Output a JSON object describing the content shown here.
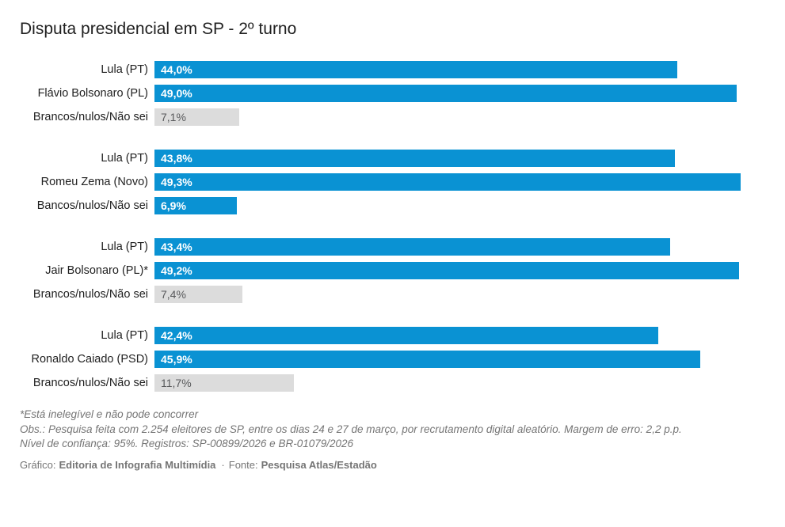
{
  "title": "Disputa presidencial em SP - 2º turno",
  "colors": {
    "bar_blue": "#0a92d3",
    "bar_gray": "#dcdcdc",
    "value_on_blue": "#ffffff",
    "value_on_gray": "#58595b",
    "label_text": "#212121",
    "note_text": "#757575"
  },
  "chart_data": {
    "type": "bar",
    "orientation": "horizontal",
    "value_unit": "%",
    "xlim": [
      0,
      53
    ],
    "grid": false,
    "legend": false,
    "groups": [
      {
        "rows": [
          {
            "label": "Lula (PT)",
            "value": 44.0,
            "value_label": "44,0%",
            "style": "blue"
          },
          {
            "label": "Flávio Bolsonaro (PL)",
            "value": 49.0,
            "value_label": "49,0%",
            "style": "blue"
          },
          {
            "label": "Brancos/nulos/Não sei",
            "value": 7.1,
            "value_label": "7,1%",
            "style": "gray"
          }
        ]
      },
      {
        "rows": [
          {
            "label": "Lula (PT)",
            "value": 43.8,
            "value_label": "43,8%",
            "style": "blue"
          },
          {
            "label": "Romeu Zema (Novo)",
            "value": 49.3,
            "value_label": "49,3%",
            "style": "blue"
          },
          {
            "label": "Bancos/nulos/Não sei",
            "value": 6.9,
            "value_label": "6,9%",
            "style": "blue"
          }
        ]
      },
      {
        "rows": [
          {
            "label": "Lula (PT)",
            "value": 43.4,
            "value_label": "43,4%",
            "style": "blue"
          },
          {
            "label": "Jair Bolsonaro (PL)*",
            "value": 49.2,
            "value_label": "49,2%",
            "style": "blue"
          },
          {
            "label": "Brancos/nulos/Não sei",
            "value": 7.4,
            "value_label": "7,4%",
            "style": "gray"
          }
        ]
      },
      {
        "rows": [
          {
            "label": "Lula (PT)",
            "value": 42.4,
            "value_label": "42,4%",
            "style": "blue"
          },
          {
            "label": "Ronaldo Caiado (PSD)",
            "value": 45.9,
            "value_label": "45,9%",
            "style": "blue"
          },
          {
            "label": "Brancos/nulos/Não sei",
            "value": 11.7,
            "value_label": "11,7%",
            "style": "gray"
          }
        ]
      }
    ]
  },
  "notes": [
    "*Está inelegível e não pode concorrer",
    "Obs.: Pesquisa feita com 2.254 eleitores de SP, entre os dias 24 e 27 de março, por recrutamento digital aleatório. Margem de erro: 2,2 p.p.",
    "Nível de confiança: 95%. Registros: SP-00899/2026 e BR-01079/2026"
  ],
  "credits": {
    "chart_label": "Gráfico:",
    "chart_author": "Editoria de Infografia Multimídia",
    "separator": "·",
    "source_label": "Fonte:",
    "source_name": "Pesquisa Atlas/Estadão"
  }
}
